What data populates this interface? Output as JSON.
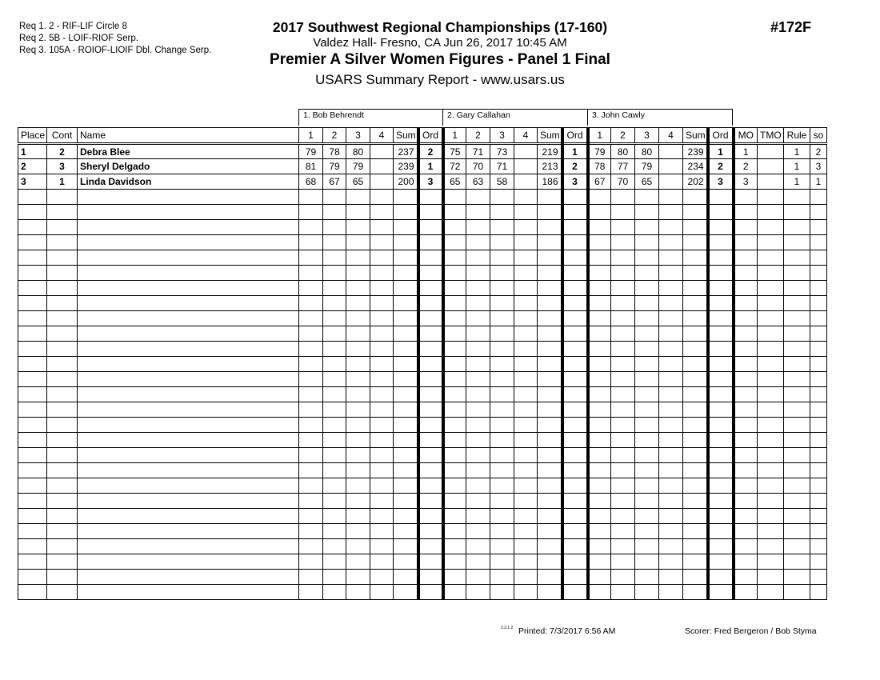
{
  "requirements": [
    "Req  1.  2 - RIF-LIF Circle 8",
    "Req  2.  5B - LOIF-RIOF Serp.",
    "Req  3.  105A  - ROIOF-LIOIF Dbl. Change Serp."
  ],
  "header": {
    "title": "2017 Southwest Regional Championships (17-160)",
    "location": "Valdez Hall- Fresno, CA  Jun 26, 2017  10:45 AM",
    "event": "Premier A Silver Women Figures - Panel 1 Final",
    "report": "USARS Summary Report - www.usars.us",
    "event_number": "#172F"
  },
  "judges": [
    "1.  Bob Behrendt",
    "2.  Gary Callahan",
    "3.  John Cawly"
  ],
  "columns": [
    "Place",
    "Cont",
    "Name",
    "1",
    "2",
    "3",
    "4",
    "Sum",
    "Ord",
    "1",
    "2",
    "3",
    "4",
    "Sum",
    "Ord",
    "1",
    "2",
    "3",
    "4",
    "Sum",
    "Ord",
    "MO",
    "TMO",
    "Rule",
    "so"
  ],
  "rows": [
    [
      "1",
      "2",
      "Debra Blee",
      "79",
      "78",
      "80",
      "",
      "237",
      "2",
      "75",
      "71",
      "73",
      "",
      "219",
      "1",
      "79",
      "80",
      "80",
      "",
      "239",
      "1",
      "1",
      "",
      "1",
      "2"
    ],
    [
      "2",
      "3",
      "Sheryl Delgado",
      "81",
      "79",
      "79",
      "",
      "239",
      "1",
      "72",
      "70",
      "71",
      "",
      "213",
      "2",
      "78",
      "77",
      "79",
      "",
      "234",
      "2",
      "2",
      "",
      "1",
      "3"
    ],
    [
      "3",
      "1",
      "Linda Davidson",
      "68",
      "67",
      "65",
      "",
      "200",
      "3",
      "65",
      "63",
      "58",
      "",
      "186",
      "3",
      "67",
      "70",
      "65",
      "",
      "202",
      "3",
      "3",
      "",
      "1",
      "1"
    ]
  ],
  "empty_rows": 27,
  "footer": {
    "code": "2.2.1.2",
    "printed": "Printed:  7/3/2017  6:56 AM",
    "scorer": "Scorer:   Fred Bergeron / Bob Styma"
  }
}
